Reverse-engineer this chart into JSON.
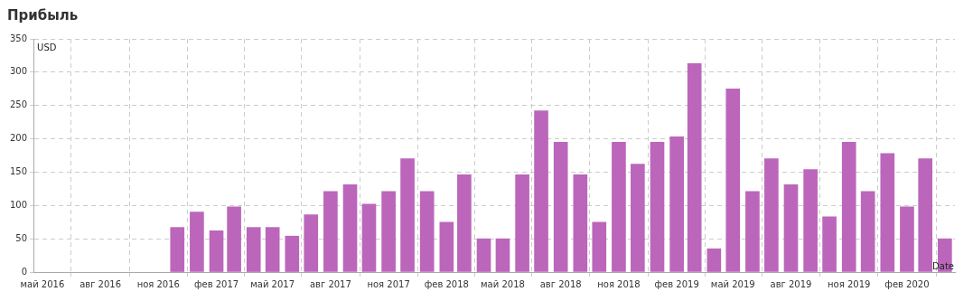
{
  "chart_data": {
    "type": "bar",
    "title": "Прибыль",
    "ylabel": "USD",
    "xlabel": "Date",
    "color": "#bb66bb",
    "grid": true,
    "x": [
      "2016-12",
      "2017-01",
      "2017-02",
      "2017-03",
      "2017-04",
      "2017-05",
      "2017-06",
      "2017-07",
      "2017-08",
      "2017-09",
      "2017-10",
      "2017-11",
      "2017-12",
      "2018-01",
      "2018-02",
      "2018-03",
      "2018-04",
      "2018-05",
      "2018-06",
      "2018-07",
      "2018-08",
      "2018-09",
      "2018-10",
      "2018-11",
      "2018-12",
      "2019-01",
      "2019-02",
      "2019-03",
      "2019-04",
      "2019-05",
      "2019-06",
      "2019-07",
      "2019-08",
      "2019-09",
      "2019-10",
      "2019-11",
      "2019-12",
      "2020-01",
      "2020-02",
      "2020-03",
      "2020-04"
    ],
    "values": [
      67,
      90,
      62,
      98,
      67,
      67,
      54,
      86,
      121,
      131,
      102,
      121,
      170,
      121,
      75,
      146,
      50,
      50,
      146,
      242,
      195,
      146,
      75,
      195,
      162,
      195,
      203,
      313,
      35,
      275,
      121,
      170,
      131,
      154,
      83,
      195,
      121,
      178,
      98,
      170,
      50
    ],
    "xlim": [
      "2016-04-17",
      "2020-04-17"
    ],
    "xticks": [
      {
        "value": "2016-05",
        "label": "май 2016"
      },
      {
        "value": "2016-08",
        "label": "авг 2016"
      },
      {
        "value": "2016-11",
        "label": "ноя 2016"
      },
      {
        "value": "2017-02",
        "label": "фев 2017"
      },
      {
        "value": "2017-05",
        "label": "май 2017"
      },
      {
        "value": "2017-08",
        "label": "авг 2017"
      },
      {
        "value": "2017-11",
        "label": "ноя 2017"
      },
      {
        "value": "2018-02",
        "label": "фев 2018"
      },
      {
        "value": "2018-05",
        "label": "май 2018"
      },
      {
        "value": "2018-08",
        "label": "авг 2018"
      },
      {
        "value": "2018-11",
        "label": "ноя 2018"
      },
      {
        "value": "2019-02",
        "label": "фев 2019"
      },
      {
        "value": "2019-05",
        "label": "май 2019"
      },
      {
        "value": "2019-08",
        "label": "авг 2019"
      },
      {
        "value": "2019-11",
        "label": "ноя 2019"
      },
      {
        "value": "2020-02",
        "label": "фев 2020"
      }
    ],
    "ylim": [
      0,
      350
    ],
    "yticks": [
      0,
      50,
      100,
      150,
      200,
      250,
      300,
      350
    ]
  }
}
